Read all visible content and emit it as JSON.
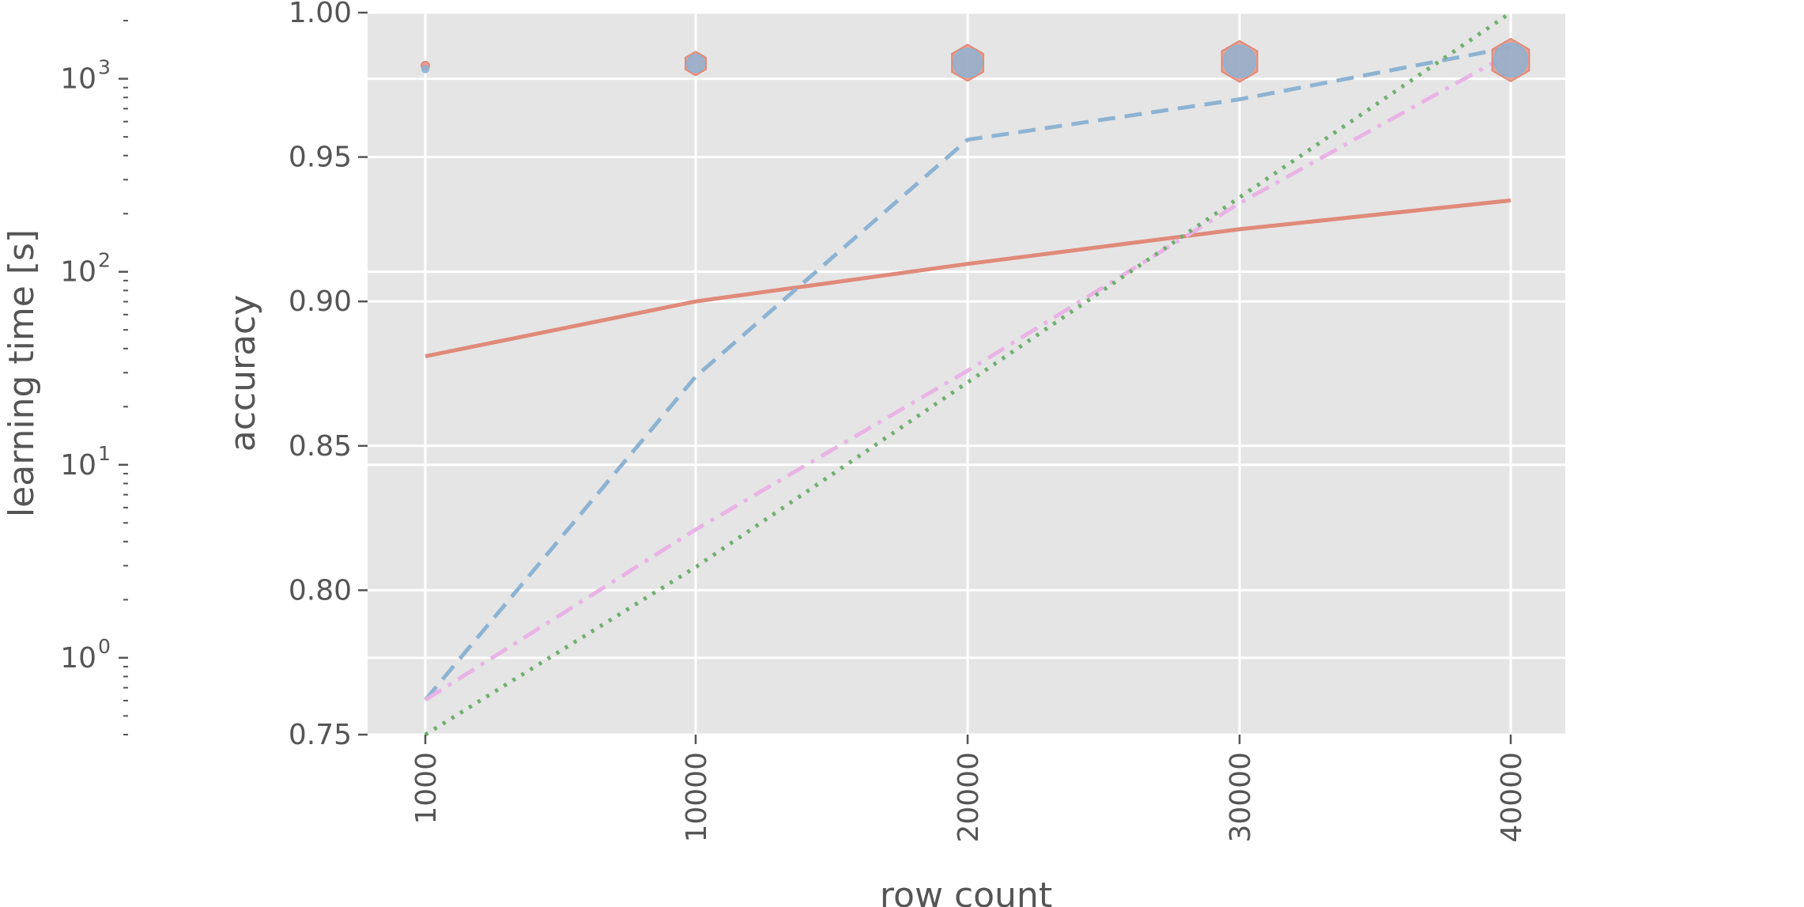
{
  "chart_data": {
    "type": "line",
    "x_categories": [
      "1000",
      "10000",
      "20000",
      "30000",
      "40000"
    ],
    "xlabel": "row count",
    "ylabel_left": "accuracy",
    "ylabel_right": "learning time [s]",
    "accuracy_axis": {
      "range": [
        0.75,
        1.0
      ],
      "ticks": [
        0.75,
        0.8,
        0.85,
        0.9,
        0.95,
        1.0
      ],
      "tick_labels": [
        "0.75",
        "0.80",
        "0.85",
        "0.90",
        "0.95",
        "1.00"
      ]
    },
    "time_axis": {
      "scale": "log",
      "range": [
        0.4,
        2200
      ],
      "major_ticks": [
        1,
        10,
        100,
        1000
      ],
      "tick_labels": [
        {
          "base": "10",
          "exp": "0"
        },
        {
          "base": "10",
          "exp": "1"
        },
        {
          "base": "10",
          "exp": "2"
        },
        {
          "base": "10",
          "exp": "3"
        }
      ]
    },
    "grid": true,
    "accuracy_series": [
      {
        "style": "solid",
        "color": "#E08A7A",
        "values": [
          0.881,
          0.9,
          0.913,
          0.925,
          0.935
        ]
      },
      {
        "style": "dashed",
        "color": "#8DB3D3",
        "values": [
          0.762,
          0.874,
          0.956,
          0.97,
          0.988
        ]
      },
      {
        "style": "dashdot",
        "color": "#E9B3E6",
        "values": [
          0.762,
          0.821,
          0.876,
          0.934,
          0.986
        ]
      },
      {
        "style": "dotted",
        "color": "#6FAF6F",
        "values": [
          0.75,
          0.808,
          0.872,
          0.936,
          1.0
        ]
      }
    ],
    "time_markers": [
      {
        "shape": "circle",
        "color": "#E08A7A",
        "time": [
          1170,
          1200,
          1210,
          1230,
          1250
        ],
        "size": [
          10,
          30,
          46,
          52,
          54
        ]
      },
      {
        "shape": "circle",
        "color": "#8DB3D3",
        "time": [
          1120,
          1200,
          1210,
          1230,
          1250
        ],
        "size": [
          8,
          22,
          36,
          40,
          42
        ]
      }
    ]
  },
  "colors": {
    "plot_background": "#E5E5E5",
    "grid": "#FFFFFF",
    "text": "#555555"
  }
}
